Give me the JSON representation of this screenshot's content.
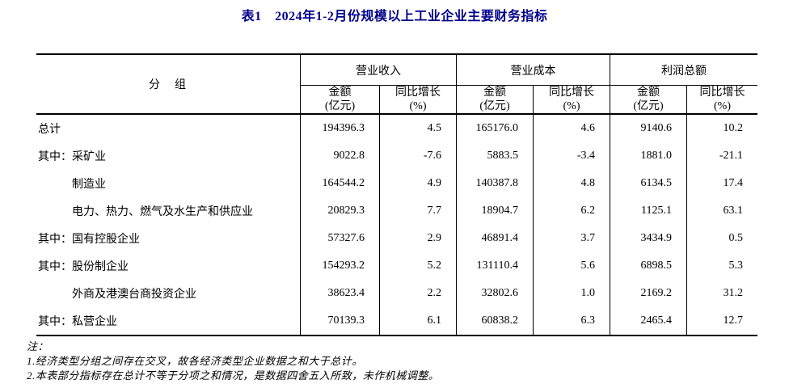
{
  "title": "表1　2024年1-2月份规模以上工业企业主要财务指标",
  "table": {
    "group_header": "分　组",
    "col_groups": [
      {
        "label": "营业收入"
      },
      {
        "label": "营业成本"
      },
      {
        "label": "利润总额"
      }
    ],
    "sub_headers": {
      "amount_line1": "金额",
      "amount_line2": "(亿元)",
      "growth_line1": "同比增长",
      "growth_line2": "(%)"
    },
    "rows": [
      {
        "prefix": "",
        "label": "总计",
        "values": [
          "194396.3",
          "4.5",
          "165176.0",
          "4.6",
          "9140.6",
          "10.2"
        ]
      },
      {
        "prefix": "其中：",
        "label": "采矿业",
        "values": [
          "9022.8",
          "-7.6",
          "5883.5",
          "-3.4",
          "1881.0",
          "-21.1"
        ]
      },
      {
        "prefix": "",
        "label": "制造业",
        "values": [
          "164544.2",
          "4.9",
          "140387.8",
          "4.8",
          "6134.5",
          "17.4"
        ]
      },
      {
        "prefix": "",
        "label": "电力、热力、燃气及水生产和供应业",
        "values": [
          "20829.3",
          "7.7",
          "18904.7",
          "6.2",
          "1125.1",
          "63.1"
        ]
      },
      {
        "prefix": "其中：",
        "label": "国有控股企业",
        "values": [
          "57327.6",
          "2.9",
          "46891.4",
          "3.7",
          "3434.9",
          "0.5"
        ]
      },
      {
        "prefix": "其中：",
        "label": "股份制企业",
        "values": [
          "154293.2",
          "5.2",
          "131110.4",
          "5.6",
          "6898.5",
          "5.3"
        ]
      },
      {
        "prefix": "",
        "label": "外商及港澳台商投资企业",
        "values": [
          "38623.4",
          "2.2",
          "32802.6",
          "1.0",
          "2169.2",
          "31.2"
        ]
      },
      {
        "prefix": "其中：",
        "label": "私营企业",
        "values": [
          "70139.3",
          "6.1",
          "60838.2",
          "6.3",
          "2465.4",
          "12.7"
        ]
      }
    ]
  },
  "notes": {
    "heading": "注：",
    "items": [
      "1.经济类型分组之间存在交叉，故各经济类型企业数据之和大于总计。",
      "2.本表部分指标存在总计不等于分项之和情况，是数据四舍五入所致，未作机械调整。"
    ]
  },
  "colors": {
    "title_navy": "#00008B",
    "text": "#000000",
    "border": "#000000"
  }
}
